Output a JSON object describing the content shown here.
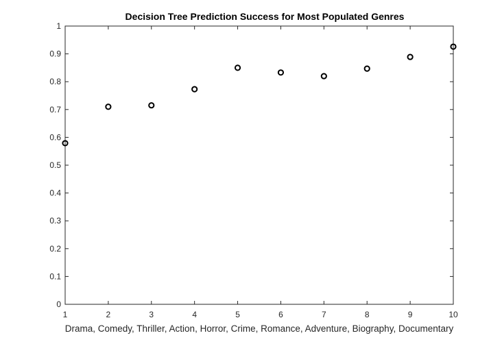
{
  "chart_data": {
    "type": "scatter",
    "title": "Decision Tree Prediction Success for Most Populated Genres",
    "xlabel": "Drama, Comedy, Thriller, Action, Horror, Crime, Romance, Adventure, Biography, Documentary",
    "ylabel": "",
    "xlim": [
      1,
      10
    ],
    "ylim": [
      0,
      1
    ],
    "xticks": [
      1,
      2,
      3,
      4,
      5,
      6,
      7,
      8,
      9,
      10
    ],
    "yticks": [
      0,
      0.1,
      0.2,
      0.3,
      0.4,
      0.5,
      0.6,
      0.7,
      0.8,
      0.9,
      1
    ],
    "x": [
      1,
      2,
      3,
      4,
      5,
      6,
      7,
      8,
      9,
      10
    ],
    "y": [
      0.579,
      0.71,
      0.715,
      0.773,
      0.85,
      0.833,
      0.82,
      0.847,
      0.889,
      0.926
    ],
    "grid": false,
    "marker": "circle-open",
    "colors": {
      "marker": "#000000",
      "axis": "#262626"
    }
  }
}
